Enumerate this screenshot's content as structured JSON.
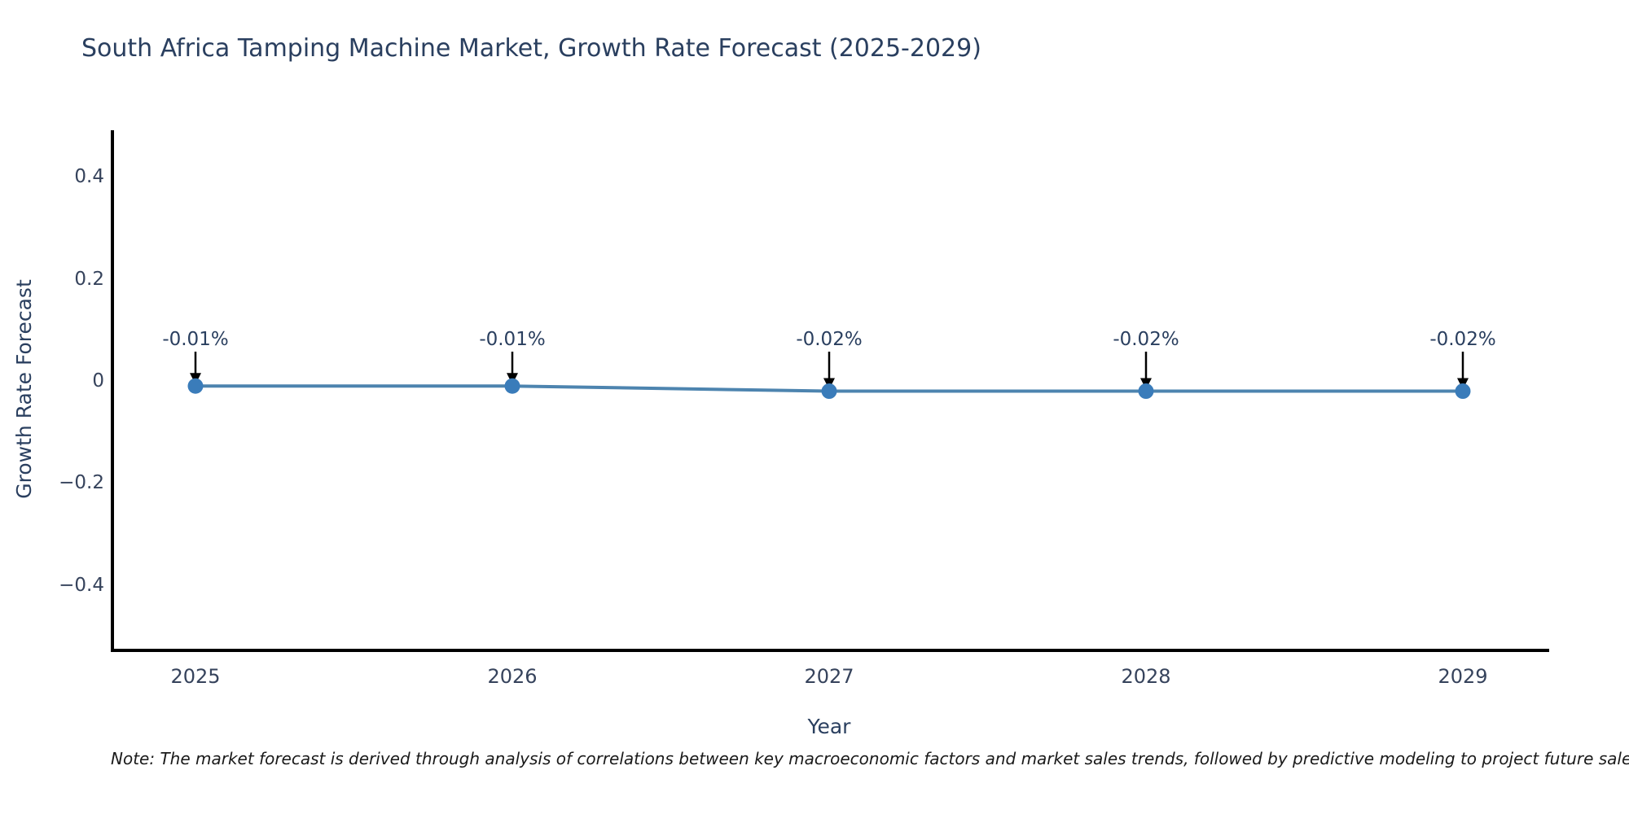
{
  "chart": {
    "title": "South Africa Tamping Machine Market, Growth Rate Forecast (2025-2029)",
    "xlabel": "Year",
    "ylabel": "Growth Rate Forecast"
  },
  "note": {
    "text": "Note: The market forecast is derived through analysis of correlations between key macroeconomic factors and market sales trends, followed by predictive modeling to project future sales"
  },
  "chart_data": {
    "type": "line",
    "x": [
      2025,
      2026,
      2027,
      2028,
      2029
    ],
    "series": [
      {
        "name": "Growth Rate Forecast",
        "values": [
          -0.01,
          -0.01,
          -0.02,
          -0.02,
          -0.02
        ]
      }
    ],
    "point_labels": [
      "-0.01%",
      "-0.01%",
      "-0.02%",
      "-0.02%",
      "-0.02%"
    ],
    "title": "South Africa Tamping Machine Market, Growth Rate Forecast (2025-2029)",
    "xlabel": "Year",
    "ylabel": "Growth Rate Forecast",
    "y_ticks": {
      "values": [
        0.4,
        0.2,
        0,
        -0.2,
        -0.4
      ],
      "labels": [
        "0.4",
        "0.2",
        "0",
        "−0.2",
        "−0.4"
      ]
    },
    "x_ticks": {
      "values": [
        2025,
        2026,
        2027,
        2028,
        2029
      ],
      "labels": [
        "2025",
        "2026",
        "2027",
        "2028",
        "2029"
      ]
    },
    "ylim": [
      -0.53,
      0.49
    ],
    "xlim": [
      2024.74,
      2029.27
    ],
    "grid": false,
    "legend": "none",
    "annotations": "arrow-to-point"
  },
  "colors": {
    "background": "#ffffff",
    "line": "#4d84af",
    "marker": "#3a7cba",
    "axis": "#000000",
    "arrow": "#000000",
    "title_text": "#2a3f5f",
    "tick_text": "#36435c",
    "annotation_text": "#2a3f5f",
    "note_text": "#1a1a1a"
  }
}
